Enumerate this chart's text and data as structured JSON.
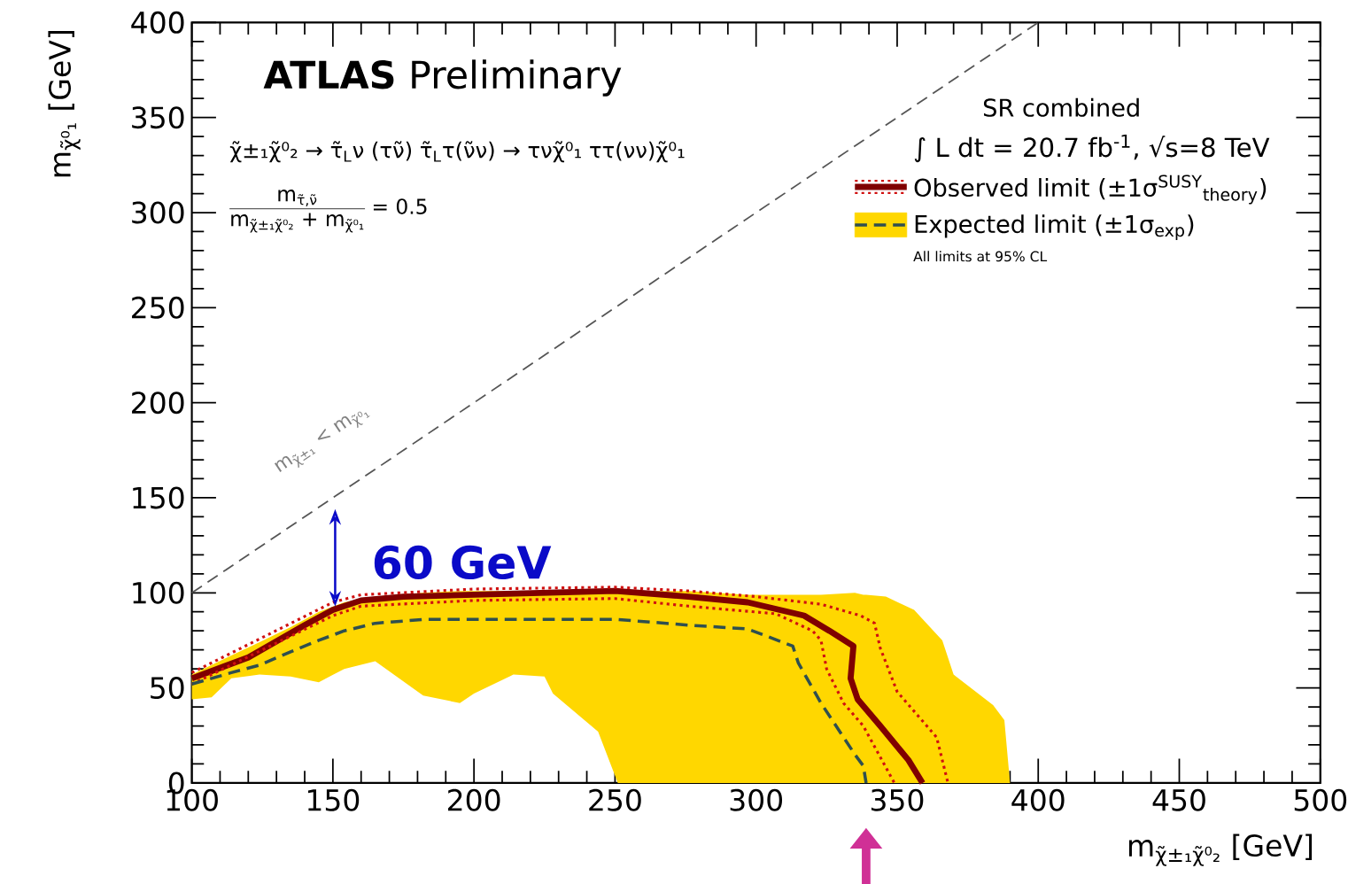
{
  "chart_data": {
    "type": "line",
    "xlabel": "m$_{χ̃±₁χ̃⁰₂}$ [GeV]",
    "ylabel": "m$_{χ̃⁰₁}$ [GeV]",
    "legend_title": "SR combined",
    "legend": "top right",
    "xlim": [
      100,
      500
    ],
    "ylim": [
      0,
      400
    ],
    "xticks": [
      100,
      150,
      200,
      250,
      300,
      350,
      400,
      450,
      500
    ],
    "yticks": [
      0,
      50,
      100,
      150,
      200,
      250,
      300,
      350,
      400
    ],
    "annotations": [
      "**ATLAS** Preliminary",
      "χ̃±₁χ̃⁰₂ → τ̃$_{L}$ν (τν̃) τ̃$_{L}$τ(ν̃ν) → τνχ̃⁰₁ ττ(νν)χ̃⁰₁",
      "m$_{τ̃,ν̃}$",
      "m$_{χ̃±₁χ̃⁰₂}$ + m$_{χ̃⁰₁}$",
      "= 0.5",
      "∫ L dt = 20.7 fb$^{-1}$, √s=8 TeV",
      "All limits at 95% CL",
      "m$_{χ̃±₁}$ < m$_{χ̃⁰₁}$",
      "60 GeV"
    ],
    "series": [
      {
        "color": "#555555",
        "line_style": "dashed",
        "x": [
          100,
          400
        ],
        "values": [
          100,
          400
        ]
      },
      {
        "name": "Observed limit (±1σ$^{SUSY}$$_{theory}$)",
        "color": "#800000",
        "line_style": "solid",
        "x": [
          100,
          120,
          140,
          150,
          160,
          175,
          200,
          225,
          250,
          276,
          297,
          317,
          326,
          334.5,
          333.5,
          336,
          344,
          354,
          359
        ],
        "values": [
          55,
          66,
          83,
          91,
          96,
          98,
          99,
          100,
          101,
          98,
          95,
          88,
          80,
          72,
          55,
          44,
          30,
          12,
          0
        ]
      },
      {
        "color": "#d01010",
        "line_style": "dotted",
        "x": [
          100,
          150,
          160,
          200,
          250,
          276,
          300,
          323,
          337,
          342,
          344,
          350,
          364,
          368
        ],
        "values": [
          58,
          95,
          99,
          102,
          103,
          101,
          98,
          94,
          88,
          84,
          71,
          48,
          24,
          0
        ]
      },
      {
        "color": "#d01010",
        "line_style": "dotted",
        "x": [
          100,
          150,
          160,
          200,
          250,
          276,
          307,
          320,
          323,
          325,
          331,
          338,
          349
        ],
        "values": [
          52,
          88,
          93,
          96,
          97,
          93,
          89,
          80,
          75,
          60,
          42,
          30,
          0
        ]
      },
      {
        "name": "Expected limit (±1σ$_{exp}$)",
        "color": "#2f4f4f",
        "line_style": "dashed",
        "x": [
          100,
          107,
          114,
          124,
          135,
          145,
          154,
          165,
          182,
          195,
          200,
          214,
          225,
          228,
          244,
          251,
          276,
          297,
          313,
          315,
          323,
          335,
          338,
          339,
          346,
          356,
          366,
          370,
          384,
          388,
          390
        ],
        "values": [
          52,
          55,
          58,
          62,
          69,
          75,
          80,
          84,
          86,
          86,
          86,
          86,
          86,
          86,
          86,
          86,
          83,
          81,
          72,
          63,
          42,
          15,
          9,
          0,
          null,
          null,
          null,
          null,
          null,
          null,
          null
        ],
        "upper": [
          57,
          62,
          67,
          74,
          82,
          90,
          95,
          98,
          100,
          101,
          101,
          101,
          101,
          101,
          101,
          101,
          101,
          99,
          99,
          99,
          99,
          100,
          99,
          99,
          98,
          91,
          75,
          57,
          41,
          33,
          0
        ],
        "lower": [
          44,
          45,
          55,
          57,
          56,
          53,
          60,
          64,
          46,
          42,
          47,
          57,
          56,
          47,
          27,
          0,
          0,
          0,
          0,
          0,
          0,
          0,
          0,
          0,
          0,
          0,
          0,
          0,
          0,
          0,
          0
        ]
      }
    ]
  }
}
